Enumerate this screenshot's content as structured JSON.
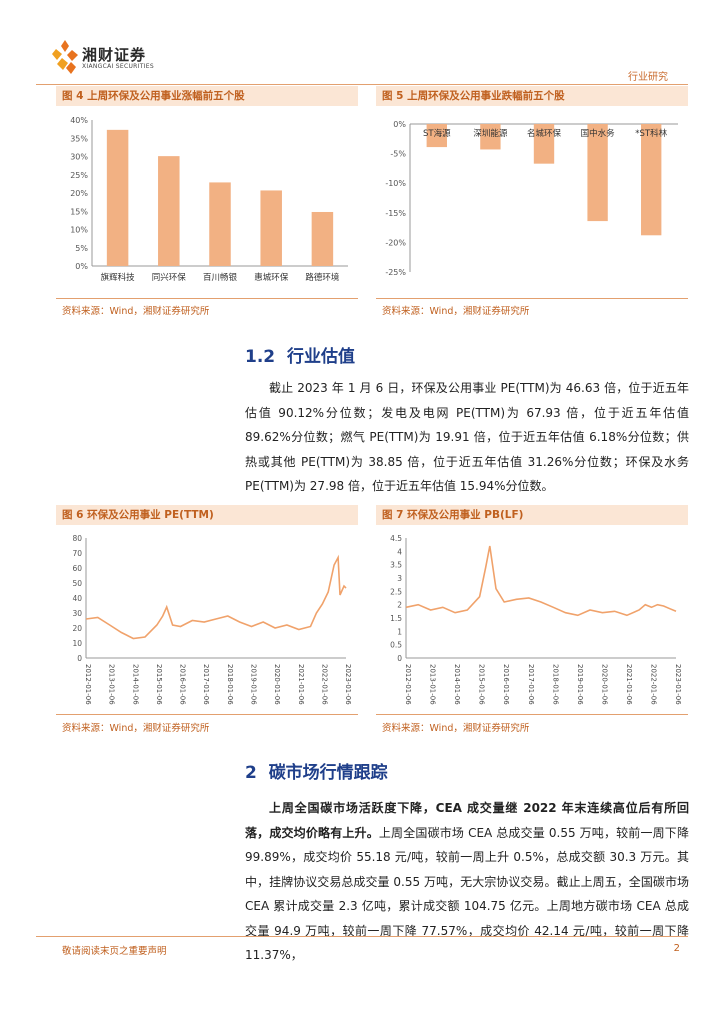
{
  "header": {
    "company_cn": "湘财证券",
    "company_en": "XIANGCAI SECURITIES",
    "section": "行业研究"
  },
  "fig4": {
    "title": "图 4 上周环保及公用事业涨幅前五个股",
    "source": "资料来源：Wind，湘财证券研究所",
    "chart_data": {
      "type": "bar",
      "categories": [
        "旗辉科技",
        "同兴环保",
        "百川畅银",
        "惠城环保",
        "路德环境"
      ],
      "values": [
        37.3,
        30.1,
        22.9,
        20.7,
        14.8
      ],
      "unit": "%",
      "ylim": [
        0,
        40
      ],
      "yticks": [
        "0%",
        "5%",
        "10%",
        "15%",
        "20%",
        "25%",
        "30%",
        "35%",
        "40%"
      ],
      "color": "#f2b183"
    }
  },
  "fig5": {
    "title": "图 5 上周环保及公用事业跌幅前五个股",
    "source": "资料来源：Wind，湘财证券研究所",
    "chart_data": {
      "type": "bar",
      "categories": [
        "ST海源",
        "深圳能源",
        "名城环保",
        "国中水务",
        "*ST科林"
      ],
      "values": [
        -3.9,
        -4.3,
        -6.7,
        -16.4,
        -18.8
      ],
      "unit": "%",
      "ylim": [
        -25,
        0
      ],
      "yticks": [
        "0%",
        "-5%",
        "-10%",
        "-15%",
        "-20%",
        "-25%"
      ],
      "color": "#f2b183"
    }
  },
  "section_1_2": {
    "number": "1.2",
    "title": "行业估值",
    "paragraph": "截止 2023 年 1 月 6 日，环保及公用事业 PE(TTM)为 46.63 倍，位于近五年估值 90.12%分位数；发电及电网 PE(TTM)为 67.93 倍，位于近五年估值 89.62%分位数；燃气 PE(TTM)为 19.91 倍，位于近五年估值 6.18%分位数；供热或其他 PE(TTM)为 38.85 倍，位于近五年估值 31.26%分位数；环保及水务 PE(TTM)为 27.98 倍，位于近五年估值 15.94%分位数。"
  },
  "fig6": {
    "title": "图 6 环保及公用事业 PE(TTM)",
    "source": "资料来源：Wind，湘财证券研究所",
    "chart_data": {
      "type": "line",
      "x": [
        "2012-01-06",
        "2012-07-06",
        "2013-01-06",
        "2013-07-06",
        "2014-01-06",
        "2014-07-06",
        "2015-01-06",
        "2015-04-06",
        "2015-06-06",
        "2015-09-06",
        "2016-01-06",
        "2016-07-06",
        "2017-01-06",
        "2017-07-06",
        "2018-01-06",
        "2018-07-06",
        "2019-01-06",
        "2019-07-06",
        "2020-01-06",
        "2020-07-06",
        "2021-01-06",
        "2021-07-06",
        "2021-10-06",
        "2022-01-06",
        "2022-04-06",
        "2022-07-06",
        "2022-09-06",
        "2022-10-06",
        "2022-12-06",
        "2023-01-06"
      ],
      "values": [
        26,
        27,
        22,
        17,
        13,
        14,
        22,
        28,
        34,
        22,
        21,
        25,
        24,
        26,
        28,
        24,
        21,
        24,
        20,
        22,
        19,
        21,
        30,
        36,
        44,
        62,
        67,
        42,
        48,
        46.63
      ],
      "ylim": [
        0,
        80
      ],
      "yticks": [
        "0",
        "10",
        "20",
        "30",
        "40",
        "50",
        "60",
        "70",
        "80"
      ],
      "xticks": [
        "2012-01-06",
        "2013-01-06",
        "2014-01-06",
        "2015-01-06",
        "2016-01-06",
        "2017-01-06",
        "2018-01-06",
        "2019-01-06",
        "2020-01-06",
        "2021-01-06",
        "2022-01-06",
        "2023-01-06"
      ],
      "color": "#f0a26b"
    }
  },
  "fig7": {
    "title": "图 7 环保及公用事业 PB(LF)",
    "source": "资料来源：Wind，湘财证券研究所",
    "chart_data": {
      "type": "line",
      "x": [
        "2012-01-06",
        "2012-07-06",
        "2013-01-06",
        "2013-07-06",
        "2014-01-06",
        "2014-07-06",
        "2015-01-06",
        "2015-04-06",
        "2015-06-06",
        "2015-09-06",
        "2016-01-06",
        "2016-07-06",
        "2017-01-06",
        "2017-07-06",
        "2018-01-06",
        "2018-07-06",
        "2019-01-06",
        "2019-07-06",
        "2020-01-06",
        "2020-07-06",
        "2021-01-06",
        "2021-07-06",
        "2021-10-06",
        "2022-01-06",
        "2022-04-06",
        "2022-07-06",
        "2022-10-06",
        "2023-01-06"
      ],
      "values": [
        1.9,
        2.0,
        1.8,
        1.9,
        1.7,
        1.8,
        2.3,
        3.4,
        4.2,
        2.6,
        2.1,
        2.2,
        2.25,
        2.1,
        1.9,
        1.7,
        1.6,
        1.8,
        1.7,
        1.75,
        1.6,
        1.8,
        2.0,
        1.9,
        2.0,
        1.95,
        1.85,
        1.75
      ],
      "ylim": [
        0,
        4.5
      ],
      "yticks": [
        "0",
        "0.5",
        "1",
        "1.5",
        "2",
        "2.5",
        "3",
        "3.5",
        "4",
        "4.5"
      ],
      "xticks": [
        "2012-01-06",
        "2013-01-06",
        "2014-01-06",
        "2015-01-06",
        "2016-01-06",
        "2017-01-06",
        "2018-01-06",
        "2019-01-06",
        "2020-01-06",
        "2021-01-06",
        "2022-01-06",
        "2023-01-06"
      ],
      "color": "#f0a26b"
    }
  },
  "section_2": {
    "number": "2",
    "title": "碳市场行情跟踪",
    "paragraph_bold": "上周全国碳市场活跃度下降，CEA 成交量继 2022 年末连续高位后有所回落，成交均价略有上升。",
    "paragraph_rest": "上周全国碳市场 CEA 总成交量 0.55 万吨，较前一周下降 99.89%，成交均价 55.18 元/吨，较前一周上升 0.5%，总成交额 30.3 万元。其中，挂牌协议交易总成交量 0.55 万吨，无大宗协议交易。截止上周五，全国碳市场 CEA 累计成交量 2.3 亿吨，累计成交额 104.75 亿元。上周地方碳市场 CEA 总成交量 94.9 万吨，较前一周下降 77.57%，成交均价 42.14 元/吨，较前一周下降 11.37%，"
  },
  "footer": {
    "disclaimer": "敬请阅读末页之重要声明",
    "page": "2"
  }
}
